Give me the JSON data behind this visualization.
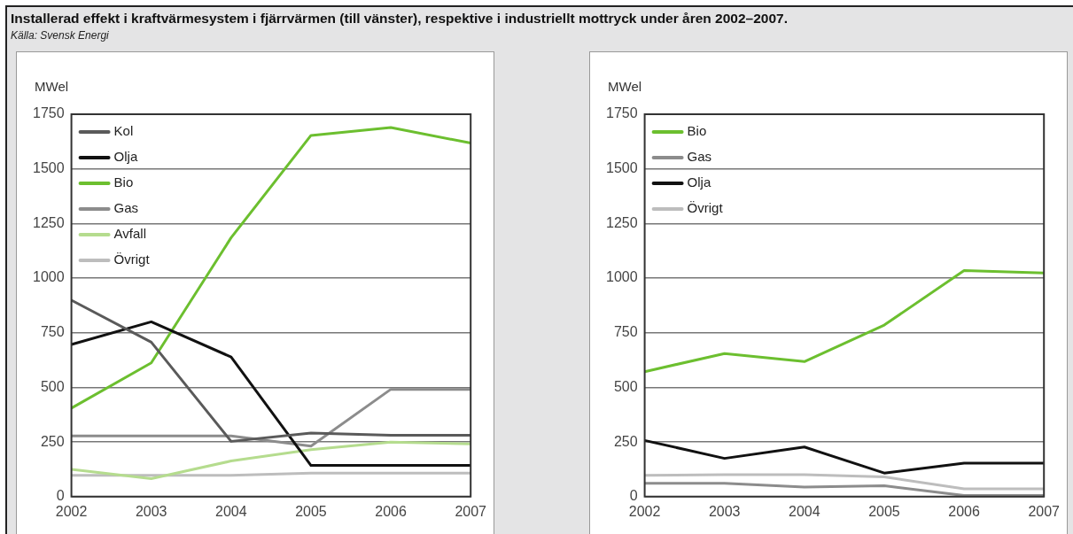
{
  "chart_data": [
    {
      "type": "line",
      "title": "Installerad effekt i kraftvärmesystem i fjärrvärmen (till vänster), respektive i industriellt mottryck under åren 2002–2007.",
      "annotations": [
        "Källa: Svensk Energi"
      ],
      "ylabel": "MWel",
      "categories": [
        "2002",
        "2003",
        "2004",
        "2005",
        "2006",
        "2007"
      ],
      "series": [
        {
          "name": "Kol",
          "color": "#5a5a5a",
          "values": [
            899,
            707,
            253,
            291,
            281,
            281
          ]
        },
        {
          "name": "Olja",
          "color": "#111111",
          "values": [
            696,
            800,
            639,
            143,
            143,
            143
          ]
        },
        {
          "name": "Bio",
          "color": "#6cbf2f",
          "values": [
            405,
            612,
            1185,
            1653,
            1689,
            1618
          ]
        },
        {
          "name": "Gas",
          "color": "#8c8c8c",
          "values": [
            278,
            278,
            278,
            231,
            491,
            491
          ]
        },
        {
          "name": "Avfall",
          "color": "#b5dc8e",
          "values": [
            125,
            82,
            163,
            215,
            249,
            241
          ]
        },
        {
          "name": "Övrigt",
          "color": "#bdbdbd",
          "values": [
            97,
            97,
            97,
            108,
            108,
            108
          ]
        }
      ],
      "ylim": [
        0,
        1750
      ],
      "yticks": [
        0,
        250,
        500,
        750,
        1000,
        1250,
        1500,
        1750
      ],
      "grid": "y",
      "legend": "top left",
      "marker": "none",
      "line_style": "solid"
    },
    {
      "type": "line",
      "ylabel": "MWel",
      "categories": [
        "2002",
        "2003",
        "2004",
        "2005",
        "2006",
        "2007"
      ],
      "series": [
        {
          "name": "Bio",
          "color": "#6cbf2f",
          "values": [
            572,
            655,
            618,
            785,
            1035,
            1024
          ]
        },
        {
          "name": "Gas",
          "color": "#8c8c8c",
          "values": [
            61,
            61,
            44,
            50,
            5,
            5
          ]
        },
        {
          "name": "Olja",
          "color": "#111111",
          "values": [
            257,
            175,
            227,
            108,
            153,
            153
          ]
        },
        {
          "name": "Övrigt",
          "color": "#bdbdbd",
          "values": [
            97,
            101,
            101,
            90,
            36,
            36
          ]
        }
      ],
      "ylim": [
        0,
        1750
      ],
      "yticks": [
        0,
        250,
        500,
        750,
        1000,
        1250,
        1500,
        1750
      ],
      "grid": "y",
      "legend": "top left",
      "marker": "none",
      "line_style": "solid"
    }
  ]
}
